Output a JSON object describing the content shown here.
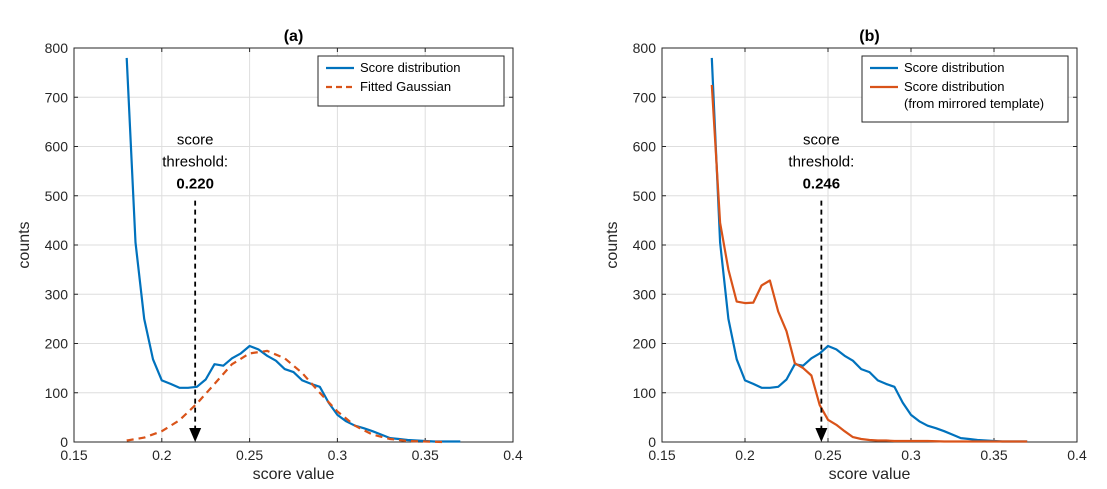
{
  "chart_data": [
    {
      "type": "line",
      "title": "(a)",
      "xlabel": "score value",
      "ylabel": "counts",
      "xlim": [
        0.15,
        0.4
      ],
      "ylim": [
        0,
        800
      ],
      "xticks": [
        "0.15",
        "0.2",
        "0.25",
        "0.3",
        "0.35",
        "0.4"
      ],
      "yticks": [
        "0",
        "100",
        "200",
        "300",
        "400",
        "500",
        "600",
        "700",
        "800"
      ],
      "grid": true,
      "legend_position": "top-right",
      "series": [
        {
          "name": "Score distribution",
          "color": "#0072BD",
          "style": "solid",
          "x": [
            0.18,
            0.185,
            0.19,
            0.195,
            0.2,
            0.205,
            0.21,
            0.215,
            0.22,
            0.225,
            0.23,
            0.235,
            0.24,
            0.245,
            0.25,
            0.255,
            0.26,
            0.265,
            0.27,
            0.275,
            0.28,
            0.285,
            0.29,
            0.295,
            0.3,
            0.305,
            0.31,
            0.315,
            0.32,
            0.325,
            0.33,
            0.335,
            0.34,
            0.345,
            0.35,
            0.355,
            0.36,
            0.365,
            0.37
          ],
          "y": [
            780,
            405,
            250,
            168,
            125,
            118,
            110,
            110,
            112,
            127,
            158,
            155,
            170,
            180,
            195,
            188,
            175,
            165,
            148,
            142,
            125,
            118,
            112,
            80,
            55,
            42,
            33,
            28,
            22,
            15,
            8,
            6,
            4,
            3,
            2,
            1,
            1,
            1,
            1
          ]
        },
        {
          "name": "Fitted Gaussian",
          "color": "#D95319",
          "style": "dashed",
          "x": [
            0.18,
            0.19,
            0.2,
            0.21,
            0.22,
            0.23,
            0.24,
            0.25,
            0.26,
            0.27,
            0.28,
            0.29,
            0.3,
            0.31,
            0.32,
            0.33,
            0.34,
            0.35,
            0.36
          ],
          "y": [
            3,
            9,
            22,
            44,
            78,
            118,
            158,
            180,
            185,
            170,
            140,
            100,
            62,
            33,
            15,
            6,
            2,
            1,
            0
          ]
        }
      ],
      "annotation": {
        "line1": "score",
        "line2": "threshold:",
        "value": "0.220",
        "x": 0.219,
        "y_top": 490,
        "y_bottom": 0
      }
    },
    {
      "type": "line",
      "title": "(b)",
      "xlabel": "score value",
      "ylabel": "counts",
      "xlim": [
        0.15,
        0.4
      ],
      "ylim": [
        0,
        800
      ],
      "xticks": [
        "0.15",
        "0.2",
        "0.25",
        "0.3",
        "0.35",
        "0.4"
      ],
      "yticks": [
        "0",
        "100",
        "200",
        "300",
        "400",
        "500",
        "600",
        "700",
        "800"
      ],
      "grid": true,
      "legend_position": "top-right",
      "series": [
        {
          "name": "Score distribution",
          "color": "#0072BD",
          "style": "solid",
          "x": [
            0.18,
            0.185,
            0.19,
            0.195,
            0.2,
            0.205,
            0.21,
            0.215,
            0.22,
            0.225,
            0.23,
            0.235,
            0.24,
            0.245,
            0.25,
            0.255,
            0.26,
            0.265,
            0.27,
            0.275,
            0.28,
            0.285,
            0.29,
            0.295,
            0.3,
            0.305,
            0.31,
            0.315,
            0.32,
            0.325,
            0.33,
            0.335,
            0.34,
            0.345,
            0.35,
            0.355,
            0.36,
            0.365,
            0.37
          ],
          "y": [
            780,
            405,
            250,
            168,
            125,
            118,
            110,
            110,
            112,
            127,
            158,
            155,
            170,
            180,
            195,
            188,
            175,
            165,
            148,
            142,
            125,
            118,
            112,
            80,
            55,
            42,
            33,
            28,
            22,
            15,
            8,
            6,
            4,
            3,
            2,
            1,
            1,
            1,
            1
          ]
        },
        {
          "name": "Score distribution",
          "name_line2": "(from mirrored template)",
          "color": "#D95319",
          "style": "solid",
          "x": [
            0.18,
            0.185,
            0.19,
            0.195,
            0.2,
            0.205,
            0.21,
            0.215,
            0.22,
            0.225,
            0.23,
            0.235,
            0.24,
            0.245,
            0.25,
            0.255,
            0.26,
            0.265,
            0.27,
            0.275,
            0.28,
            0.285,
            0.29,
            0.3,
            0.31,
            0.32,
            0.33,
            0.34,
            0.35,
            0.36,
            0.37
          ],
          "y": [
            725,
            445,
            350,
            285,
            282,
            283,
            318,
            328,
            265,
            225,
            160,
            150,
            135,
            75,
            45,
            35,
            22,
            10,
            6,
            4,
            3,
            3,
            2,
            2,
            2,
            1,
            1,
            1,
            1,
            1,
            1
          ]
        }
      ],
      "annotation": {
        "line1": "score",
        "line2": "threshold:",
        "value": "0.246",
        "x": 0.246,
        "y_top": 490,
        "y_bottom": 0
      }
    }
  ]
}
